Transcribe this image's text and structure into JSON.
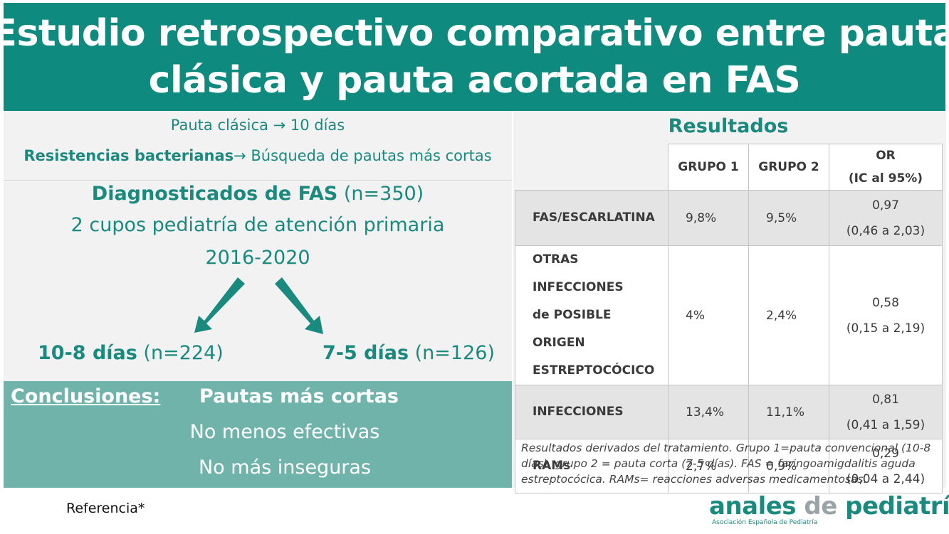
{
  "title": {
    "line1": "Estudio retrospectivo comparativo entre pauta",
    "line2": "clásica y pauta acortada en FAS"
  },
  "intro": {
    "line1": "Pauta clásica → 10 días",
    "line2_bold": "Resistencias bacterianas",
    "line2_rest": "→ Búsqueda de pautas más cortas"
  },
  "diagnosis": {
    "bold": "Diagnosticados de FAS",
    "count": " (n=350)",
    "line2": "2 cupos pediatría de atención primaria",
    "line3": "2016-2020",
    "group1_bold": "10-8 días",
    "group1_n": " (n=224)",
    "group2_bold": "7-5 días",
    "group2_n": " (n=126)"
  },
  "conclusions": {
    "label": "Conclusiones:",
    "line1": "Pautas más cortas",
    "line2": "No menos efectivas",
    "line3": "No más inseguras"
  },
  "results": {
    "title": "Resultados",
    "headers": {
      "g1": "GRUPO 1",
      "g2": "GRUPO 2",
      "or1": "OR",
      "or2": "(IC al 95%)"
    },
    "rows": [
      {
        "label": [
          "FAS/ESCARLATINA"
        ],
        "g1": "9,8%",
        "g2": "9,5%",
        "or": "0,97",
        "ci": "(0,46 a 2,03)"
      },
      {
        "label": [
          "OTRAS INFECCIONES",
          "de POSIBLE ORIGEN",
          "ESTREPTOCÓCICO"
        ],
        "g1": "4%",
        "g2": "2,4%",
        "or": "0,58",
        "ci": "(0,15 a 2,19)"
      },
      {
        "label": [
          "INFECCIONES"
        ],
        "g1": "13,4%",
        "g2": "11,1%",
        "or": "0,81",
        "ci": "(0,41 a 1,59)"
      },
      {
        "label": [
          "RAMs"
        ],
        "g1": "2,7%",
        "g2": "0,9%",
        "or": "0,29",
        "ci": "(0,04 a 2,44)"
      }
    ],
    "footnote": "Resultados derivados del tratamiento. Grupo 1=pauta convencional (10-8 días), grupo 2 = pauta corta (7-5 días). FAS = faringoamigdalitis aguda estreptocócica. RAMs= reacciones adversas medicamentosas."
  },
  "reference": "Referencia*",
  "logo": {
    "word1": "anales",
    "word2": "de",
    "word3": "pediatría",
    "subtitle": "Asociación Española de Pediatría"
  },
  "colors": {
    "banner": "#0f8a7e",
    "accent_text": "#1a8a7e",
    "conclusions_bg": "#6fb3ab",
    "panel_bg": "#f2f2f2"
  }
}
